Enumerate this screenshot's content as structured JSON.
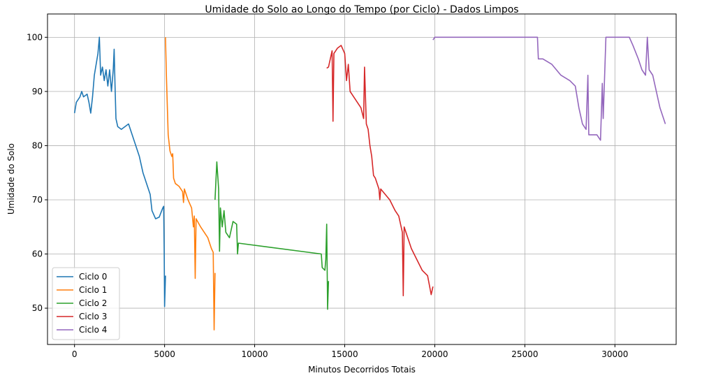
{
  "chart_data": {
    "type": "line",
    "title": "Umidade do Solo ao Longo do Tempo (por Ciclo) - Dados Limpos",
    "x_label": "Minutos Decorridos Totais",
    "y_label": "Umidade do Solo",
    "xlim": [
      -1500,
      33400
    ],
    "ylim": [
      43.3,
      104.3
    ],
    "xticks": [
      0,
      5000,
      10000,
      15000,
      20000,
      25000,
      30000
    ],
    "yticks": [
      50,
      60,
      70,
      80,
      90,
      100
    ],
    "grid": true,
    "legend": "lower-left",
    "series": [
      {
        "name": "Ciclo 0",
        "color": "#1f77b4",
        "x": [
          0,
          100,
          300,
          400,
          500,
          700,
          800,
          900,
          1000,
          1100,
          1300,
          1380,
          1450,
          1550,
          1650,
          1750,
          1850,
          1950,
          2050,
          2150,
          2200,
          2250,
          2300,
          2400,
          2600,
          2800,
          3000,
          3200,
          3400,
          3600,
          3800,
          4000,
          4200,
          4300,
          4500,
          4700,
          4900,
          4950,
          4980,
          5000,
          5050
        ],
        "values": [
          86,
          88,
          89,
          90,
          89,
          89.5,
          88,
          86,
          89,
          93,
          97,
          100,
          93,
          94.5,
          92,
          94,
          91,
          94,
          90,
          94,
          97.8,
          91,
          85,
          83.5,
          83,
          83.5,
          84,
          82,
          80,
          78,
          75,
          73,
          71,
          68,
          66.5,
          66.8,
          68.5,
          68.8,
          60,
          50.3,
          56
        ]
      },
      {
        "name": "Ciclo 1",
        "color": "#ff7f0e",
        "x": [
          5050,
          5100,
          5200,
          5300,
          5400,
          5450,
          5500,
          5600,
          5800,
          6000,
          6050,
          6100,
          6300,
          6500,
          6600,
          6650,
          6700,
          6750,
          7000,
          7200,
          7400,
          7500,
          7600,
          7700,
          7750,
          7800
        ],
        "values": [
          100,
          93,
          82,
          79,
          78,
          78.5,
          74,
          73,
          72.5,
          71.5,
          69.5,
          72,
          70,
          68.5,
          65,
          67,
          55.5,
          66.5,
          65,
          64,
          63,
          62,
          61,
          60.3,
          46,
          56.5
        ]
      },
      {
        "name": "Ciclo 2",
        "color": "#2ca02c",
        "x": [
          7800,
          7900,
          8000,
          8050,
          8100,
          8200,
          8300,
          8400,
          8600,
          8800,
          9000,
          9050,
          9100,
          13700,
          13750,
          13900,
          13950,
          14000,
          14050,
          14100
        ],
        "values": [
          70,
          77,
          72,
          60.5,
          68.5,
          65,
          68,
          64,
          63,
          66,
          65.5,
          60,
          62,
          60,
          57.5,
          57,
          59,
          65.5,
          49.8,
          55
        ]
      },
      {
        "name": "Ciclo 3",
        "color": "#d62728",
        "x": [
          14000,
          14100,
          14200,
          14300,
          14350,
          14400,
          14600,
          14800,
          15000,
          15100,
          15200,
          15300,
          15500,
          15700,
          15900,
          16050,
          16100,
          16200,
          16300,
          16400,
          16500,
          16600,
          16700,
          16900,
          16950,
          17000,
          17500,
          17800,
          18000,
          18200,
          18250,
          18300,
          18500,
          18700,
          19000,
          19300,
          19600,
          19800,
          19900
        ],
        "values": [
          94.3,
          94.5,
          96,
          97.5,
          84.5,
          97,
          98,
          98.5,
          97,
          92,
          95,
          90,
          89,
          88,
          87,
          85,
          94.5,
          84,
          83,
          80,
          78,
          74.5,
          74,
          72,
          70,
          72,
          70,
          68,
          67,
          64,
          52.3,
          65,
          63,
          61,
          59,
          57,
          56,
          52.5,
          54
        ]
      },
      {
        "name": "Ciclo 4",
        "color": "#9467bd",
        "x": [
          19900,
          20000,
          25700,
          25750,
          26000,
          26500,
          27000,
          27500,
          27800,
          28000,
          28200,
          28400,
          28500,
          28550,
          29000,
          29200,
          29300,
          29350,
          29500,
          30800,
          31000,
          31300,
          31500,
          31700,
          31800,
          31900,
          32100,
          32300,
          32500,
          32700,
          32800
        ],
        "values": [
          99.5,
          100,
          100,
          96,
          96,
          95,
          93,
          92,
          91,
          87,
          84,
          83,
          93,
          82,
          82,
          81,
          91.5,
          85,
          100,
          100,
          98.5,
          96,
          94,
          93,
          100,
          94,
          93,
          90,
          87,
          85,
          84
        ]
      }
    ]
  }
}
